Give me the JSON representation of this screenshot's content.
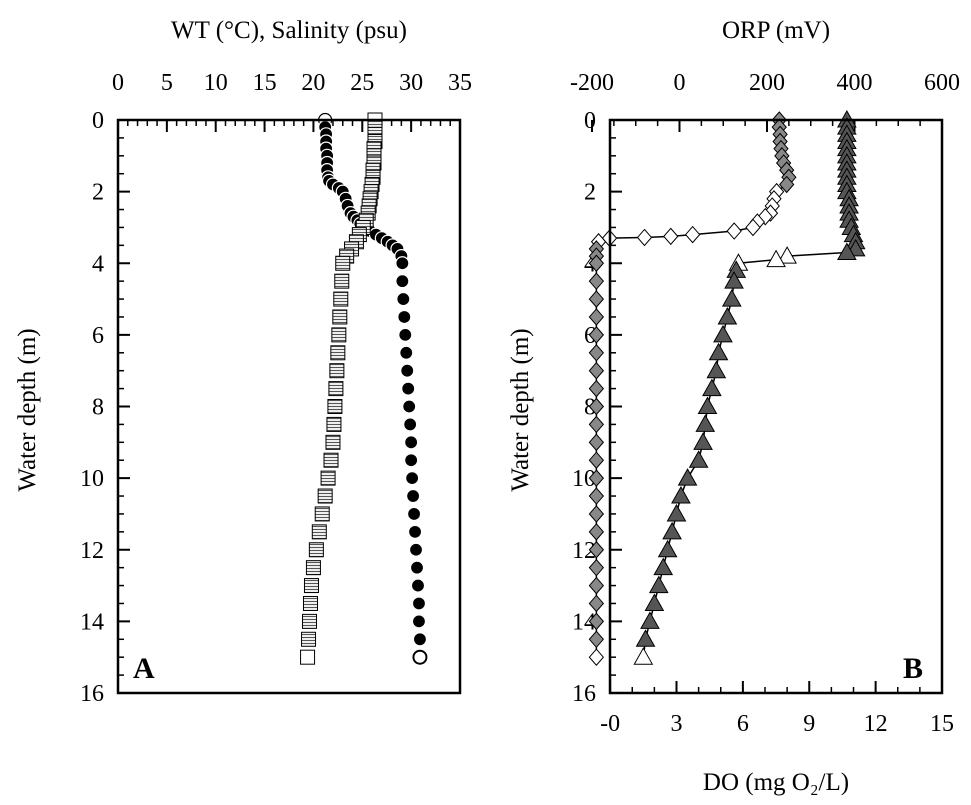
{
  "chart_data": [
    {
      "panel_label": "A",
      "type": "scatter",
      "top_axis_label": "WT (°C), Salinity (psu)",
      "ylabel": "Water depth (m)",
      "xlim": [
        0,
        35
      ],
      "ylim": [
        0,
        16
      ],
      "y_inverted": true,
      "x_ticks": [
        0,
        5,
        10,
        15,
        20,
        25,
        30,
        35
      ],
      "y_ticks": [
        0,
        2,
        4,
        6,
        8,
        10,
        12,
        14,
        16
      ],
      "grid": false,
      "series": [
        {
          "marker": "circle",
          "fill": "#000000",
          "points": [
            [
              21.2,
              0
            ],
            [
              21.2,
              0.2
            ],
            [
              21.3,
              0.4
            ],
            [
              21.3,
              0.6
            ],
            [
              21.3,
              0.8
            ],
            [
              21.4,
              1.0
            ],
            [
              21.4,
              1.2
            ],
            [
              21.4,
              1.4
            ],
            [
              21.5,
              1.6
            ],
            [
              21.6,
              1.7
            ],
            [
              22.0,
              1.8
            ],
            [
              22.6,
              1.9
            ],
            [
              23.0,
              2.0
            ],
            [
              23.3,
              2.2
            ],
            [
              23.5,
              2.4
            ],
            [
              23.8,
              2.6
            ],
            [
              24.1,
              2.7
            ],
            [
              24.5,
              2.8
            ],
            [
              24.8,
              2.9
            ],
            [
              25.2,
              3.0
            ],
            [
              25.8,
              3.1
            ],
            [
              26.4,
              3.2
            ],
            [
              27.0,
              3.3
            ],
            [
              27.6,
              3.4
            ],
            [
              28.1,
              3.5
            ],
            [
              28.6,
              3.6
            ],
            [
              29.0,
              3.8
            ],
            [
              29.1,
              4.0
            ],
            [
              29.1,
              4.5
            ],
            [
              29.2,
              5.0
            ],
            [
              29.3,
              5.5
            ],
            [
              29.4,
              6.0
            ],
            [
              29.5,
              6.5
            ],
            [
              29.6,
              7.0
            ],
            [
              29.7,
              7.5
            ],
            [
              29.8,
              8.0
            ],
            [
              29.9,
              8.5
            ],
            [
              30.0,
              9.0
            ],
            [
              30.0,
              9.5
            ],
            [
              30.1,
              10.0
            ],
            [
              30.2,
              10.5
            ],
            [
              30.3,
              11.0
            ],
            [
              30.4,
              11.5
            ],
            [
              30.5,
              12.0
            ],
            [
              30.6,
              12.5
            ],
            [
              30.7,
              13.0
            ],
            [
              30.8,
              13.5
            ],
            [
              30.8,
              14.0
            ],
            [
              30.9,
              14.5
            ],
            [
              30.9,
              15.0
            ]
          ]
        },
        {
          "marker": "square",
          "fill": "#9a9a9a",
          "points": [
            [
              26.3,
              0
            ],
            [
              26.3,
              0.2
            ],
            [
              26.3,
              0.4
            ],
            [
              26.3,
              0.6
            ],
            [
              26.2,
              0.8
            ],
            [
              26.2,
              1.0
            ],
            [
              26.2,
              1.2
            ],
            [
              26.1,
              1.4
            ],
            [
              26.1,
              1.6
            ],
            [
              26.0,
              1.8
            ],
            [
              25.9,
              2.0
            ],
            [
              25.8,
              2.2
            ],
            [
              25.7,
              2.4
            ],
            [
              25.6,
              2.6
            ],
            [
              25.4,
              2.8
            ],
            [
              25.1,
              3.0
            ],
            [
              24.7,
              3.2
            ],
            [
              24.4,
              3.4
            ],
            [
              23.9,
              3.6
            ],
            [
              23.4,
              3.8
            ],
            [
              23.0,
              4.0
            ],
            [
              22.9,
              4.5
            ],
            [
              22.8,
              5.0
            ],
            [
              22.7,
              5.5
            ],
            [
              22.6,
              6.0
            ],
            [
              22.5,
              6.5
            ],
            [
              22.4,
              7.0
            ],
            [
              22.3,
              7.5
            ],
            [
              22.2,
              8.0
            ],
            [
              22.1,
              8.5
            ],
            [
              22.0,
              9.0
            ],
            [
              21.8,
              9.5
            ],
            [
              21.5,
              10.0
            ],
            [
              21.2,
              10.5
            ],
            [
              20.9,
              11.0
            ],
            [
              20.6,
              11.5
            ],
            [
              20.3,
              12.0
            ],
            [
              20.0,
              12.5
            ],
            [
              19.8,
              13.0
            ],
            [
              19.7,
              13.5
            ],
            [
              19.6,
              14.0
            ],
            [
              19.5,
              14.5
            ],
            [
              19.4,
              15.0
            ]
          ]
        }
      ]
    },
    {
      "panel_label": "B",
      "type": "scatter",
      "top_axis_label": "ORP (mV)",
      "xlabel": "DO (mg O₂/L)",
      "ylabel": "Water depth (m)",
      "top_xlim": [
        -200,
        600
      ],
      "bottom_xlim": [
        -1,
        15
      ],
      "ylim": [
        0,
        16
      ],
      "y_inverted": true,
      "top_x_ticks": [
        -200,
        0,
        200,
        400,
        600
      ],
      "top_x_tick_labels": [
        "-200",
        "0",
        "200",
        "400",
        "600"
      ],
      "bottom_x_ticks": [
        0,
        3,
        6,
        9,
        12,
        15
      ],
      "bottom_x_tick_labels": [
        "-0",
        "3",
        "6",
        "9",
        "12",
        "15"
      ],
      "y_ticks": [
        0,
        2,
        4,
        6,
        8,
        10,
        12,
        14,
        16
      ],
      "grid": false,
      "series": [
        {
          "marker": "diamond",
          "axis": "top",
          "fill": "#888888",
          "points": [
            [
              228,
              0
            ],
            [
              228,
              0.2
            ],
            [
              230,
              0.4
            ],
            [
              230,
              0.6
            ],
            [
              232,
              0.8
            ],
            [
              234,
              1.0
            ],
            [
              238,
              1.2
            ],
            [
              245,
              1.4
            ],
            [
              250,
              1.6
            ],
            [
              245,
              1.8
            ],
            [
              222,
              2.0
            ],
            [
              216,
              2.2
            ],
            [
              212,
              2.4
            ],
            [
              208,
              2.6
            ],
            [
              196,
              2.7
            ],
            [
              178,
              2.85
            ],
            [
              168,
              3.0
            ],
            [
              125,
              3.1
            ],
            [
              30,
              3.2
            ],
            [
              -20,
              3.25
            ],
            [
              -80,
              3.28
            ],
            [
              -160,
              3.3
            ],
            [
              -185,
              3.4
            ],
            [
              -190,
              3.6
            ],
            [
              -190,
              3.8
            ],
            [
              -190,
              4.0
            ],
            [
              -190,
              4.5
            ],
            [
              -190,
              5.0
            ],
            [
              -190,
              5.5
            ],
            [
              -190,
              6.0
            ],
            [
              -190,
              6.5
            ],
            [
              -190,
              7.0
            ],
            [
              -190,
              7.5
            ],
            [
              -190,
              8.0
            ],
            [
              -190,
              8.5
            ],
            [
              -190,
              9.0
            ],
            [
              -190,
              9.5
            ],
            [
              -190,
              10.0
            ],
            [
              -190,
              10.5
            ],
            [
              -190,
              11.0
            ],
            [
              -190,
              11.5
            ],
            [
              -190,
              12.0
            ],
            [
              -190,
              12.5
            ],
            [
              -190,
              13.0
            ],
            [
              -190,
              13.5
            ],
            [
              -190,
              14.0
            ],
            [
              -190,
              14.5
            ],
            [
              -190,
              15.0
            ]
          ]
        },
        {
          "marker": "triangle",
          "axis": "bottom",
          "fill": "#555555",
          "points": [
            [
              10.7,
              0
            ],
            [
              10.7,
              0.2
            ],
            [
              10.7,
              0.4
            ],
            [
              10.7,
              0.6
            ],
            [
              10.7,
              0.8
            ],
            [
              10.7,
              1.0
            ],
            [
              10.7,
              1.2
            ],
            [
              10.7,
              1.4
            ],
            [
              10.7,
              1.6
            ],
            [
              10.7,
              1.8
            ],
            [
              10.7,
              2.0
            ],
            [
              10.8,
              2.2
            ],
            [
              10.8,
              2.4
            ],
            [
              10.8,
              2.6
            ],
            [
              10.8,
              2.8
            ],
            [
              10.9,
              3.0
            ],
            [
              11.0,
              3.2
            ],
            [
              11.1,
              3.4
            ],
            [
              11.1,
              3.6
            ],
            [
              10.7,
              3.7
            ],
            [
              8.0,
              3.8
            ],
            [
              7.5,
              3.9
            ],
            [
              5.8,
              4.0
            ],
            [
              5.7,
              4.2
            ],
            [
              5.6,
              4.5
            ],
            [
              5.5,
              5.0
            ],
            [
              5.3,
              5.5
            ],
            [
              5.1,
              6.0
            ],
            [
              4.9,
              6.5
            ],
            [
              4.8,
              7.0
            ],
            [
              4.6,
              7.5
            ],
            [
              4.4,
              8.0
            ],
            [
              4.3,
              8.5
            ],
            [
              4.2,
              9.0
            ],
            [
              4.0,
              9.5
            ],
            [
              3.5,
              10.0
            ],
            [
              3.2,
              10.5
            ],
            [
              3.0,
              11.0
            ],
            [
              2.8,
              11.5
            ],
            [
              2.6,
              12.0
            ],
            [
              2.4,
              12.5
            ],
            [
              2.2,
              13.0
            ],
            [
              2.0,
              13.5
            ],
            [
              1.8,
              14.0
            ],
            [
              1.6,
              14.5
            ],
            [
              1.5,
              15.0
            ]
          ]
        }
      ]
    }
  ]
}
